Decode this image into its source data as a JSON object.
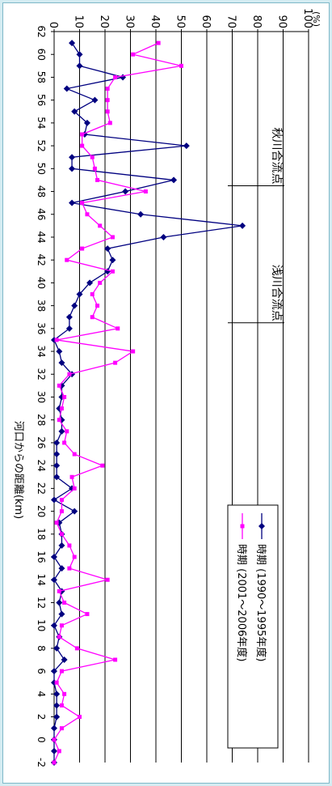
{
  "chart_data": {
    "type": "line",
    "title": "",
    "xlabel": "河口からの距離(km)",
    "ylabel": "(%)",
    "x_ticks": [
      62,
      60,
      58,
      56,
      54,
      52,
      50,
      48,
      46,
      44,
      42,
      40,
      38,
      36,
      34,
      32,
      30,
      28,
      26,
      24,
      22,
      20,
      18,
      16,
      14,
      12,
      10,
      8,
      6,
      4,
      2,
      0,
      -2
    ],
    "y_ticks": [
      0,
      10,
      20,
      30,
      40,
      50,
      60,
      70,
      80,
      90,
      100
    ],
    "xlim": [
      -2,
      62
    ],
    "ylim": [
      0,
      100
    ],
    "grid": "horizontal",
    "legend_position": "upper-right",
    "colors": {
      "series1": "#000080",
      "series2": "#ff00ff"
    },
    "annotations": [
      {
        "text": "秋川合流点",
        "x": 48.5
      },
      {
        "text": "浅川合流点",
        "x": 36.5
      }
    ],
    "series": [
      {
        "name": "時期 (1990～1995年度)",
        "marker": "diamond",
        "x": [
          61,
          60,
          59,
          58,
          57,
          56,
          55,
          54,
          53,
          52,
          51,
          50,
          49,
          48,
          47,
          46,
          45,
          44,
          43,
          42,
          41,
          40,
          39,
          38,
          37,
          36,
          35,
          34,
          33,
          32,
          31,
          30,
          29,
          28,
          27,
          26,
          25,
          24,
          23,
          22,
          21,
          20,
          19,
          18,
          17,
          16,
          15,
          14,
          13,
          12,
          11,
          10,
          9,
          8,
          7,
          6,
          5,
          4,
          3,
          2,
          1,
          0,
          -1,
          -2
        ],
        "y": [
          7,
          10,
          10,
          27,
          5,
          16,
          8,
          13,
          12,
          52,
          7,
          7,
          47,
          28,
          7,
          34,
          74,
          43,
          21,
          23,
          21,
          14,
          10,
          8,
          6,
          6,
          0,
          2,
          3,
          7,
          3,
          3,
          2,
          3,
          3,
          1,
          1,
          1,
          1,
          7,
          0,
          8,
          2,
          3,
          3,
          0,
          3,
          0,
          3,
          2,
          3,
          0,
          2,
          1,
          4,
          0,
          0,
          1,
          1,
          1,
          0,
          0,
          0,
          0
        ]
      },
      {
        "name": "時期 (2001～2006年度)",
        "marker": "square",
        "x": [
          61,
          60,
          59,
          58,
          57,
          56,
          55,
          54,
          53,
          52,
          51,
          50,
          49,
          48,
          47,
          46,
          45,
          44,
          43,
          42,
          41,
          40,
          39,
          38,
          37,
          36,
          35,
          34,
          33,
          32,
          31,
          30,
          29,
          28,
          27,
          26,
          25,
          24,
          23,
          22,
          21,
          20,
          19,
          18,
          17,
          16,
          15,
          14,
          13,
          12,
          11,
          10,
          9,
          8,
          7,
          6,
          5,
          4,
          3,
          2,
          1,
          0,
          -1,
          -2
        ],
        "y": [
          41,
          31,
          50,
          24,
          21,
          21,
          21,
          22,
          11,
          11,
          15,
          16,
          17,
          36,
          11,
          13,
          18,
          23,
          11,
          5,
          23,
          18,
          15,
          17,
          15,
          25,
          1,
          31,
          24,
          6,
          2,
          4,
          3,
          2,
          5,
          4,
          8,
          19,
          7,
          8,
          3,
          3,
          1,
          3,
          6,
          8,
          6,
          21,
          2,
          4,
          13,
          3,
          2,
          9,
          24,
          3,
          1,
          4,
          3,
          10,
          3,
          0,
          2,
          0
        ]
      }
    ]
  }
}
